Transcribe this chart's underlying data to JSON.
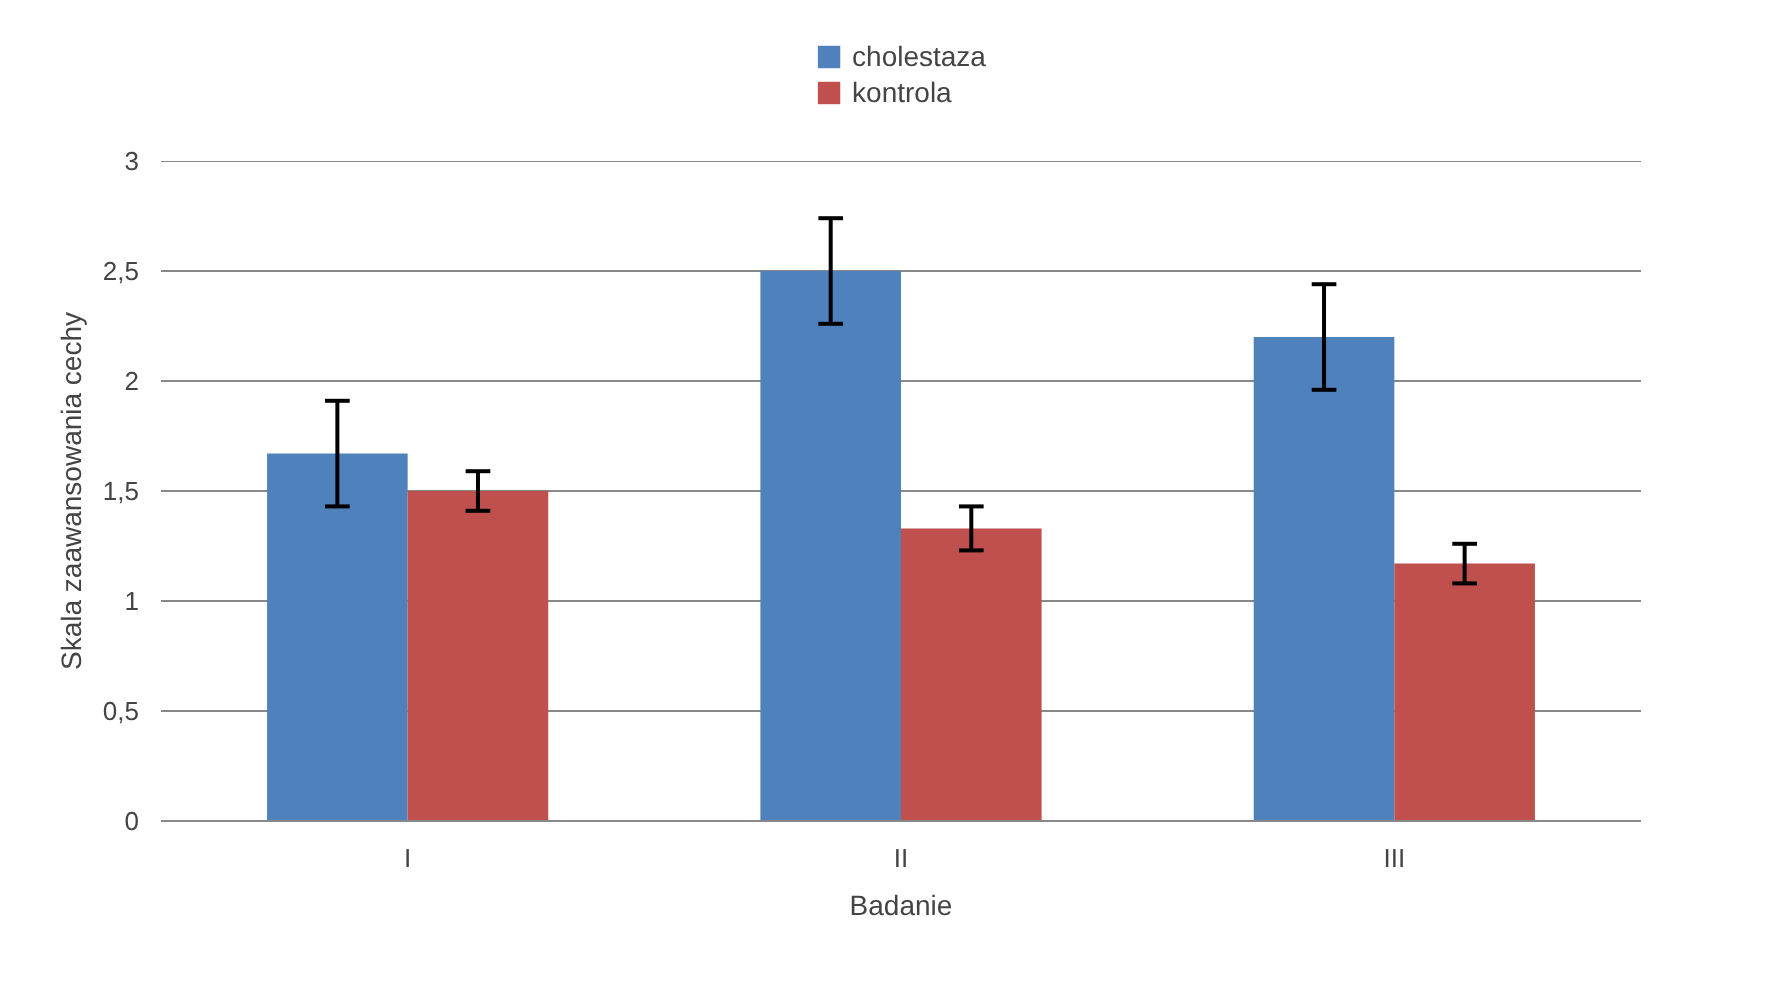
{
  "chart_data": {
    "type": "bar",
    "xlabel": "Badanie",
    "ylabel": "Skala zaawansowania cechy",
    "categories": [
      "I",
      "II",
      "III"
    ],
    "series": [
      {
        "name": "cholestaza",
        "color": "#4f81bd",
        "values": [
          1.67,
          2.5,
          2.2
        ],
        "errors": [
          0.24,
          0.24,
          0.24
        ]
      },
      {
        "name": "kontrola",
        "color": "#c0504d",
        "values": [
          1.5,
          1.33,
          1.17
        ],
        "errors": [
          0.09,
          0.1,
          0.09
        ]
      }
    ],
    "ylim": [
      0,
      3
    ],
    "yticks": [
      0,
      {
        "value": 0.5,
        "label": "0,5"
      },
      1,
      {
        "value": 1.5,
        "label": "1,5"
      },
      2,
      {
        "value": 2.5,
        "label": "2,5"
      },
      3
    ],
    "grid": "y",
    "legend": "top"
  }
}
